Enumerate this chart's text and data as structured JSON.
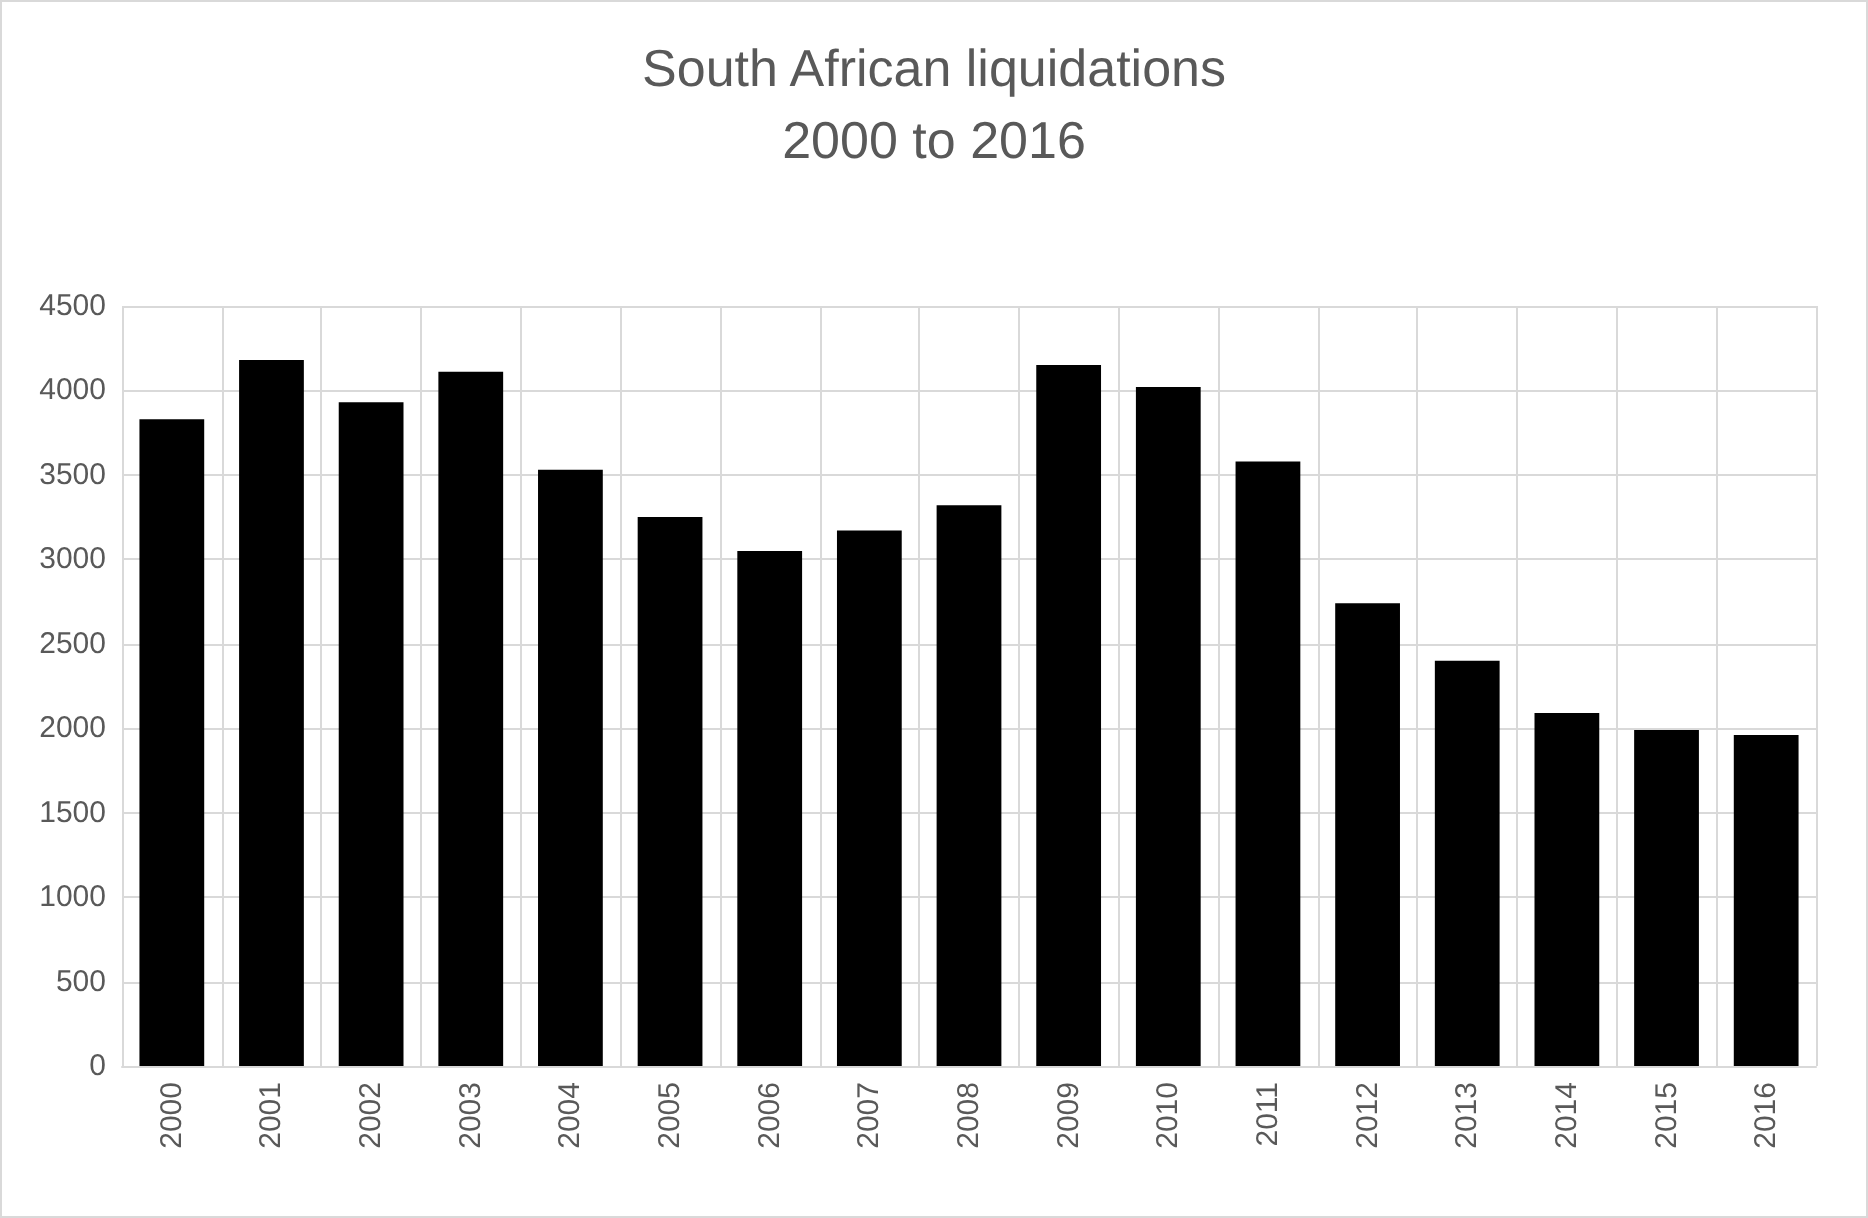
{
  "chart_data": {
    "type": "bar",
    "title": "South African liquidations\n2000 to 2016",
    "categories": [
      "2000",
      "2001",
      "2002",
      "2003",
      "2004",
      "2005",
      "2006",
      "2007",
      "2008",
      "2009",
      "2010",
      "2011",
      "2012",
      "2013",
      "2014",
      "2015",
      "2016"
    ],
    "values": [
      3830,
      4180,
      3930,
      4110,
      3530,
      3250,
      3050,
      3170,
      3320,
      4150,
      4020,
      3580,
      2740,
      2400,
      2090,
      1990,
      1960
    ],
    "color": "#000000",
    "ylim": [
      0,
      4500
    ],
    "yticks": [
      0,
      500,
      1000,
      1500,
      2000,
      2500,
      3000,
      3500,
      4000,
      4500
    ],
    "grid": true
  }
}
